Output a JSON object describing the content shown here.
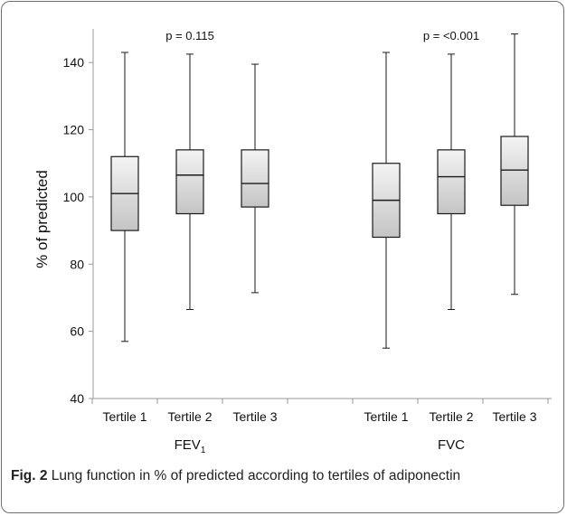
{
  "caption": {
    "figure_label": "Fig. 2",
    "text": "Lung function in % of predicted according to tertiles of adiponectin"
  },
  "colors": {
    "box_fill_light": "#f4f4f4",
    "box_fill_dark": "#c4c4c4",
    "line": "#1a1a1a",
    "frame": "#6e6e6e"
  },
  "chart_data": {
    "type": "boxplot",
    "ylabel": "% of predicted",
    "ylim": [
      40,
      150
    ],
    "yticks": [
      40,
      60,
      80,
      100,
      120,
      140
    ],
    "groups": [
      {
        "name": "FEV",
        "name_subscript": "1",
        "p_value": "p = 0.115",
        "boxes": [
          {
            "category": "Tertile 1",
            "min": 57,
            "q1": 90,
            "median": 101,
            "q3": 112,
            "max": 143
          },
          {
            "category": "Tertile 2",
            "min": 66.5,
            "q1": 95,
            "median": 106.5,
            "q3": 114,
            "max": 142.5
          },
          {
            "category": "Tertile 3",
            "min": 71.5,
            "q1": 97,
            "median": 104,
            "q3": 114,
            "max": 139.5
          }
        ]
      },
      {
        "name": "FVC",
        "name_subscript": "",
        "p_value": "p = <0.001",
        "boxes": [
          {
            "category": "Tertile 1",
            "min": 55,
            "q1": 88,
            "median": 99,
            "q3": 110,
            "max": 143
          },
          {
            "category": "Tertile 2",
            "min": 66.5,
            "q1": 95,
            "median": 106,
            "q3": 114,
            "max": 142.5
          },
          {
            "category": "Tertile 3",
            "min": 71,
            "q1": 97.5,
            "median": 108,
            "q3": 118,
            "max": 148.5
          }
        ]
      }
    ]
  }
}
